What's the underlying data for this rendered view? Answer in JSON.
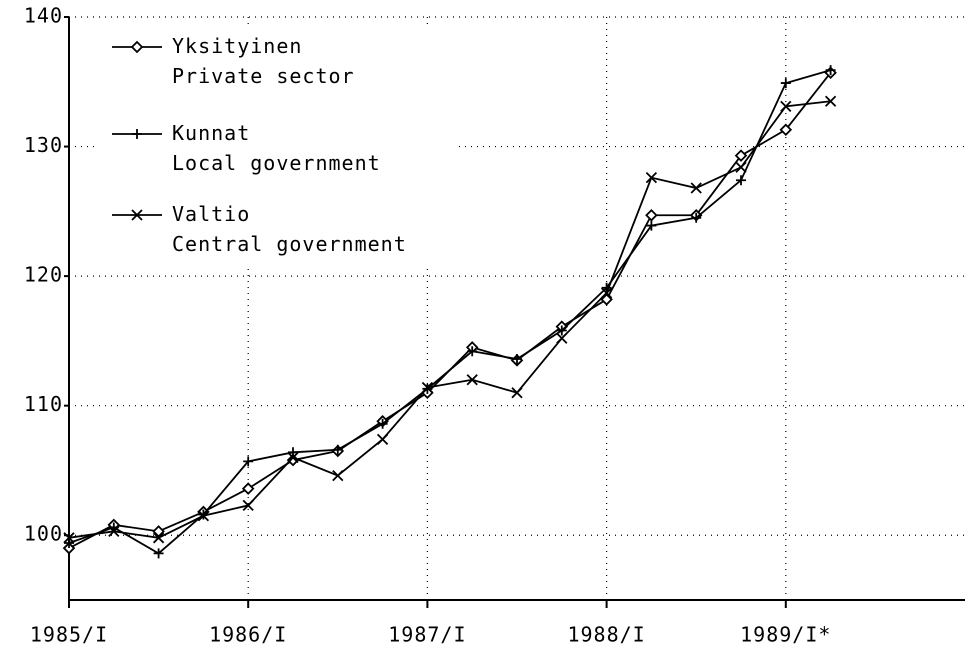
{
  "chart_data": {
    "type": "line",
    "x": [
      1985,
      1985.25,
      1985.5,
      1985.75,
      1986,
      1986.25,
      1986.5,
      1986.75,
      1987,
      1987.25,
      1987.5,
      1987.75,
      1988,
      1988.25,
      1988.5,
      1988.75,
      1989,
      1989.25
    ],
    "xlim": [
      1985,
      1990
    ],
    "xticks": [
      {
        "value": 1985,
        "label": "1985/I"
      },
      {
        "value": 1986,
        "label": "1986/I"
      },
      {
        "value": 1987,
        "label": "1987/I"
      },
      {
        "value": 1988,
        "label": "1988/I"
      },
      {
        "value": 1989,
        "label": "1989/I*"
      }
    ],
    "ylim": [
      95,
      140
    ],
    "yticks": [
      100,
      110,
      120,
      130,
      140
    ],
    "grid": true,
    "legend": "upper left",
    "series": [
      {
        "name": "Yksityinen\nPrivate sector",
        "color": "#000000",
        "marker": "diamond",
        "values": [
          99.0,
          100.8,
          100.3,
          101.8,
          103.6,
          105.8,
          106.5,
          108.8,
          111.0,
          114.5,
          113.5,
          116.1,
          118.2,
          124.7,
          124.7,
          129.3,
          131.3,
          135.7
        ]
      },
      {
        "name": "Kunnat\nLocal government",
        "color": "#000000",
        "marker": "plus",
        "values": [
          99.4,
          100.6,
          98.6,
          101.6,
          105.7,
          106.4,
          106.6,
          108.6,
          111.3,
          114.2,
          113.6,
          115.8,
          119.1,
          123.9,
          124.5,
          127.4,
          134.9,
          135.9
        ]
      },
      {
        "name": "Valtio\nCentral government",
        "color": "#000000",
        "marker": "cross",
        "values": [
          99.8,
          100.3,
          99.8,
          101.5,
          102.3,
          106.0,
          104.6,
          107.4,
          111.4,
          112.0,
          111.0,
          115.2,
          118.7,
          127.6,
          126.8,
          128.4,
          133.1,
          133.5
        ]
      }
    ]
  }
}
